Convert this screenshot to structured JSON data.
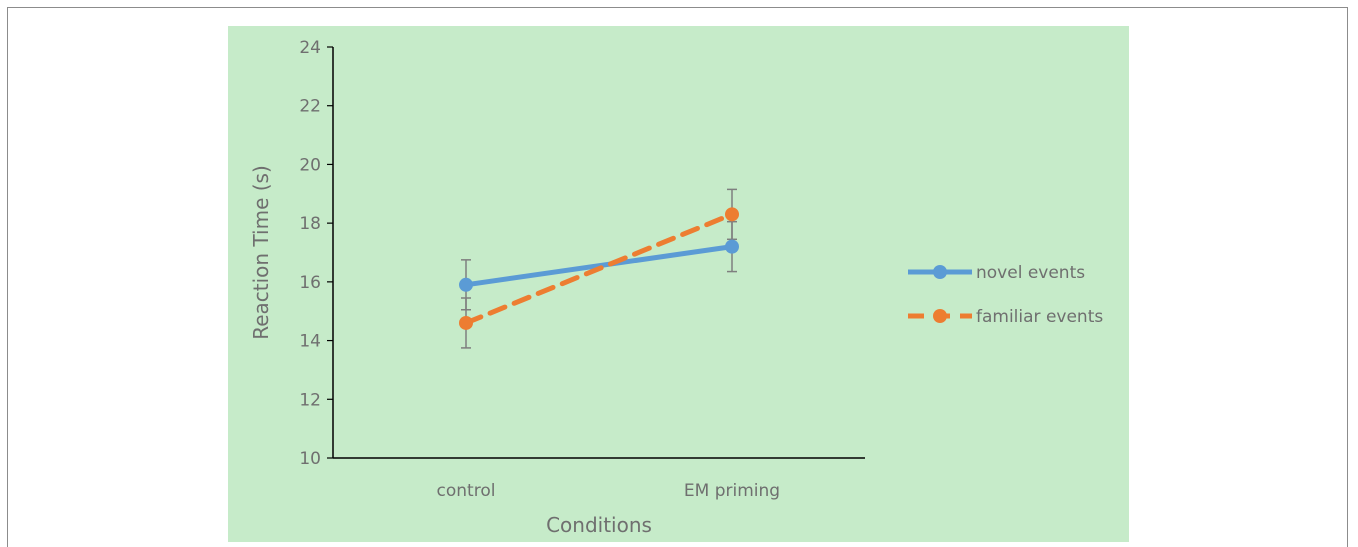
{
  "chart_data": {
    "type": "line",
    "categories": [
      "control",
      "EM priming"
    ],
    "series": [
      {
        "name": "novel events",
        "values": [
          15.9,
          17.2
        ],
        "error": [
          0.85,
          0.85
        ],
        "color": "#5b9bd5",
        "dash": "solid",
        "marker": "circle"
      },
      {
        "name": "familiar events",
        "values": [
          14.6,
          18.3
        ],
        "error": [
          0.85,
          0.85
        ],
        "color": "#ed7d31",
        "dash": "dashed",
        "marker": "circle"
      }
    ],
    "xlabel": "Conditions",
    "ylabel": "Reaction Time (s)",
    "ylim": [
      10,
      24
    ],
    "yticks": [
      10,
      12,
      14,
      16,
      18,
      20,
      22,
      24
    ],
    "grid": false,
    "legend_position": "right",
    "plot_background": "#c6ebc9",
    "axis_color": "#000000",
    "errorbar_color": "#7f7f7f"
  }
}
